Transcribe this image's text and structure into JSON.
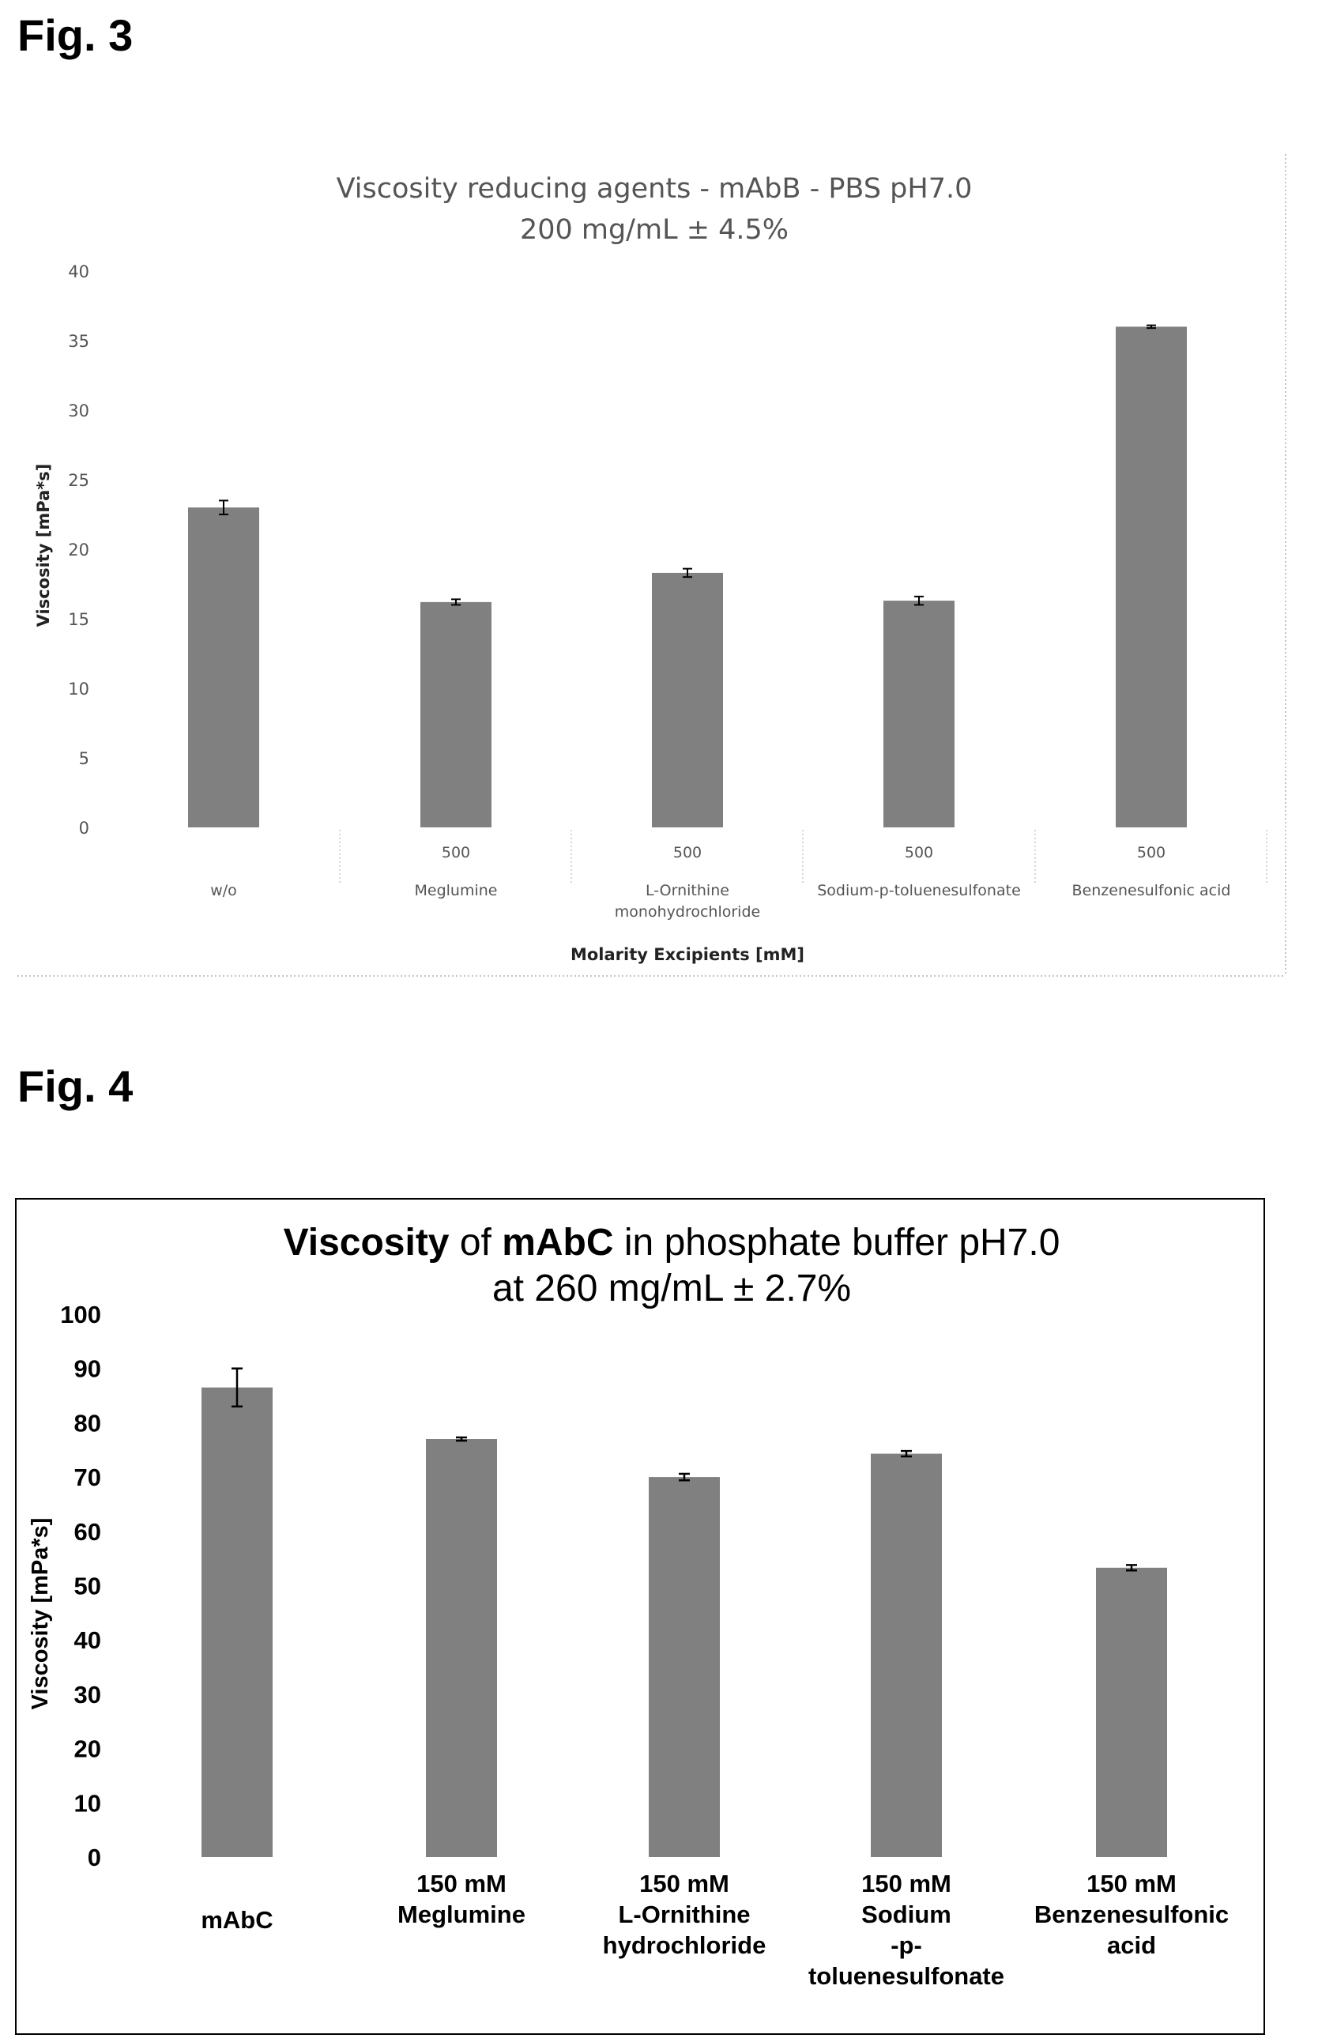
{
  "figures": [
    {
      "label": "Fig. 3",
      "chart_data": {
        "type": "bar",
        "title": "Viscosity reducing agents - mAbB - PBS pH7.0",
        "subtitle": "200 mg/mL ± 4.5%",
        "ylabel": "Viscosity [mPa*s]",
        "xlabel": "Molarity Excipients [mM]",
        "ylim": [
          0,
          40
        ],
        "yticks": [
          0,
          5,
          10,
          15,
          20,
          25,
          30,
          35,
          40
        ],
        "grid": false,
        "molarity_labels": [
          "",
          "500",
          "500",
          "500",
          "500"
        ],
        "categories": [
          "w/o",
          "Meglumine",
          "L-Ornithine monohydrochloride",
          "Sodium-p-toluenesulfonate",
          "Benzenesulfonic acid"
        ],
        "category_lines": [
          [
            "w/o"
          ],
          [
            "Meglumine"
          ],
          [
            "L-Ornithine",
            "monohydrochloride"
          ],
          [
            "Sodium-p-toluenesulfonate"
          ],
          [
            "Benzenesulfonic acid"
          ]
        ],
        "values": [
          23.0,
          16.2,
          18.3,
          16.3,
          36.0
        ],
        "errors": [
          0.5,
          0.2,
          0.3,
          0.3,
          0.1
        ],
        "bar_color": "#808080"
      }
    },
    {
      "label": "Fig. 4",
      "chart_data": {
        "type": "bar",
        "title_parts": [
          {
            "text": "Viscosity",
            "bold": true
          },
          {
            "text": " of ",
            "bold": false
          },
          {
            "text": "mAbC",
            "bold": true
          },
          {
            "text": " in phosphate buffer pH7.0",
            "bold": false
          }
        ],
        "subtitle": "at 260 mg/mL ± 2.7%",
        "ylabel": "Viscosity [mPa*s]",
        "xlabel": "",
        "ylim": [
          0,
          100
        ],
        "yticks": [
          0,
          10,
          20,
          30,
          40,
          50,
          60,
          70,
          80,
          90,
          100
        ],
        "grid": false,
        "categories": [
          "mAbC",
          "150 mM Meglumine",
          "150 mM L-Ornithine hydrochloride",
          "150 mM Sodium -p- toluenesulfonate",
          "150 mM Benzenesulfonic acid"
        ],
        "category_lines": [
          [
            "mAbC"
          ],
          [
            "150 mM",
            "Meglumine"
          ],
          [
            "150 mM",
            "L-Ornithine",
            "hydrochloride"
          ],
          [
            "150 mM",
            "Sodium",
            "-p-",
            "toluenesulfonate"
          ],
          [
            "150 mM",
            "Benzenesulfonic",
            "acid"
          ]
        ],
        "values": [
          86.5,
          77.0,
          70.0,
          74.3,
          53.3
        ],
        "errors": [
          3.5,
          0.3,
          0.6,
          0.5,
          0.5
        ],
        "bar_color": "#808080"
      }
    }
  ]
}
